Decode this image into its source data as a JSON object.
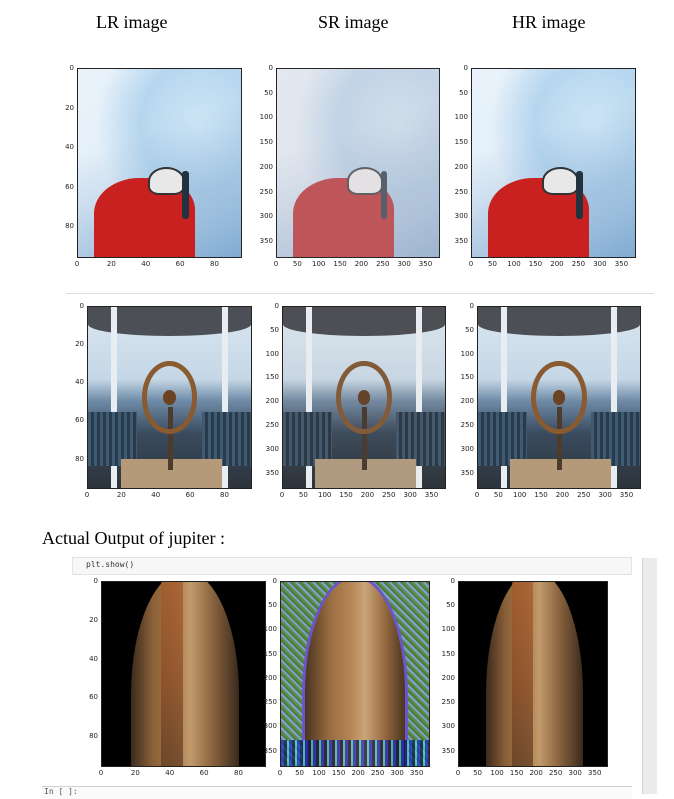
{
  "headers": {
    "lr": "LR image",
    "sr": "SR image",
    "hr": "HR image"
  },
  "caption": "Actual Output of jupiter :",
  "notebook": {
    "code": "plt.show()",
    "prompt": "In [ ]:"
  },
  "axes": {
    "lr_y": [
      "0",
      "20",
      "40",
      "60",
      "80"
    ],
    "lr_x": [
      "0",
      "20",
      "40",
      "60",
      "80"
    ],
    "sr_y": [
      "0",
      "50",
      "100",
      "150",
      "200",
      "250",
      "300",
      "350"
    ],
    "sr_x": [
      "0",
      "50",
      "100",
      "150",
      "200",
      "250",
      "300",
      "350"
    ]
  }
}
